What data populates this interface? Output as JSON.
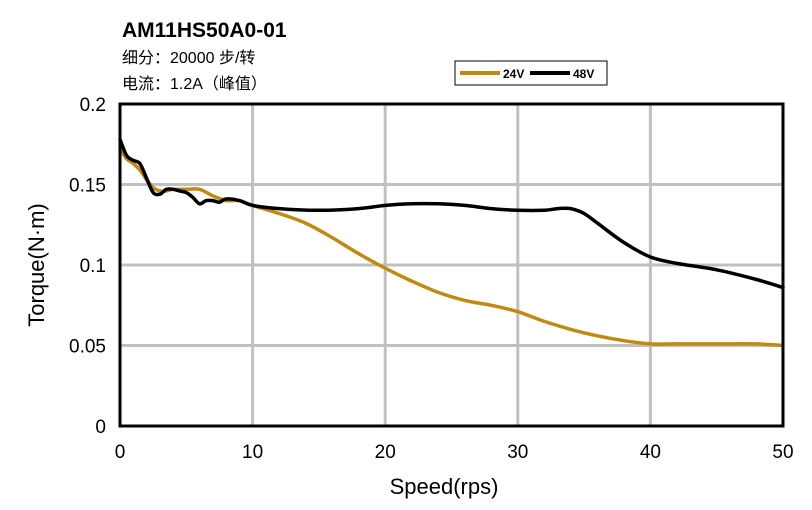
{
  "chart_data": {
    "type": "line",
    "title": "AM11HS50A0-01",
    "subtitle_lines": [
      "细分：20000 步/转",
      "电流：1.2A（峰值）"
    ],
    "xlabel": "Speed(rps)",
    "ylabel": "Torque(N·m)",
    "xlim": [
      0,
      50
    ],
    "ylim": [
      0,
      0.2
    ],
    "x_ticks": [
      0,
      10,
      20,
      30,
      40,
      50
    ],
    "y_ticks": [
      0,
      0.05,
      0.1,
      0.15,
      0.2
    ],
    "x_tick_labels": [
      "0",
      "10",
      "20",
      "30",
      "40",
      "50"
    ],
    "y_tick_labels": [
      "0",
      "0.05",
      "0.1",
      "0.15",
      "0.2"
    ],
    "grid": true,
    "legend_position": "top-center",
    "series": [
      {
        "name": "24V",
        "color": "#C08A12",
        "x": [
          0,
          0.5,
          1,
          1.5,
          2,
          2.5,
          3,
          3.5,
          4,
          5,
          6,
          7,
          8,
          9,
          10,
          12,
          14,
          16,
          18,
          20,
          22,
          24,
          26,
          28,
          30,
          32,
          34,
          36,
          38,
          40,
          42,
          45,
          48,
          50
        ],
        "y": [
          0.172,
          0.166,
          0.163,
          0.159,
          0.153,
          0.148,
          0.146,
          0.146,
          0.147,
          0.147,
          0.147,
          0.143,
          0.14,
          0.14,
          0.137,
          0.132,
          0.126,
          0.117,
          0.107,
          0.098,
          0.09,
          0.083,
          0.078,
          0.075,
          0.071,
          0.065,
          0.06,
          0.056,
          0.053,
          0.051,
          0.051,
          0.051,
          0.051,
          0.05
        ]
      },
      {
        "name": "48V",
        "color": "#000000",
        "x": [
          0,
          0.5,
          1,
          1.5,
          2,
          2.5,
          3,
          3.5,
          4,
          4.5,
          5,
          5.5,
          6,
          6.5,
          7,
          7.5,
          8,
          9,
          10,
          12,
          15,
          18,
          20,
          22,
          24,
          26,
          28,
          30,
          32,
          33,
          34,
          35,
          36,
          38,
          40,
          42,
          45,
          48,
          50
        ],
        "y": [
          0.178,
          0.168,
          0.165,
          0.163,
          0.154,
          0.145,
          0.144,
          0.147,
          0.147,
          0.146,
          0.145,
          0.142,
          0.138,
          0.14,
          0.14,
          0.139,
          0.141,
          0.14,
          0.137,
          0.135,
          0.134,
          0.135,
          0.137,
          0.138,
          0.138,
          0.137,
          0.135,
          0.134,
          0.134,
          0.135,
          0.135,
          0.132,
          0.126,
          0.114,
          0.105,
          0.101,
          0.097,
          0.091,
          0.086
        ]
      }
    ]
  }
}
